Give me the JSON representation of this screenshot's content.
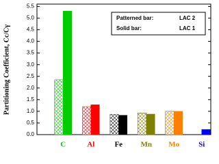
{
  "chart_data": {
    "type": "bar",
    "ylabel": "Partitioning Coefficient, Cc/Cγ",
    "categories": [
      "C",
      "Al",
      "Fe",
      "Mn",
      "Mo",
      "Si"
    ],
    "category_colors": [
      "#00cc00",
      "#ff0000",
      "#000000",
      "#808000",
      "#ff8000",
      "#0000ff"
    ],
    "legend_keys": [
      "Patterned bar:",
      "Solid bar:"
    ],
    "series": [
      {
        "name": "LAC 2",
        "pattern": "crosshatch",
        "values": [
          2.35,
          1.2,
          0.87,
          0.93,
          1.0,
          null
        ]
      },
      {
        "name": "LAC 1",
        "pattern": "solid",
        "values": [
          5.3,
          1.28,
          0.83,
          0.88,
          1.0,
          0.22
        ]
      }
    ],
    "ylim": [
      0,
      5.6
    ],
    "yticks": [
      {
        "value": 0,
        "label": "0.0"
      },
      {
        "value": 0.5,
        "label": "0.5"
      },
      {
        "value": 1,
        "label": "1.0"
      },
      {
        "value": 1.5,
        "label": "1.5"
      },
      {
        "value": 2,
        "label": "2.0"
      },
      {
        "value": 2.5,
        "label": "2.5"
      },
      {
        "value": 3,
        "label": "3.0"
      },
      {
        "value": 3.5,
        "label": "3.5"
      },
      {
        "value": 4,
        "label": "4.0"
      },
      {
        "value": 4.5,
        "label": "4.5"
      },
      {
        "value": 5,
        "label": "5.0"
      },
      {
        "value": 5.5,
        "label": "5.5"
      }
    ]
  }
}
